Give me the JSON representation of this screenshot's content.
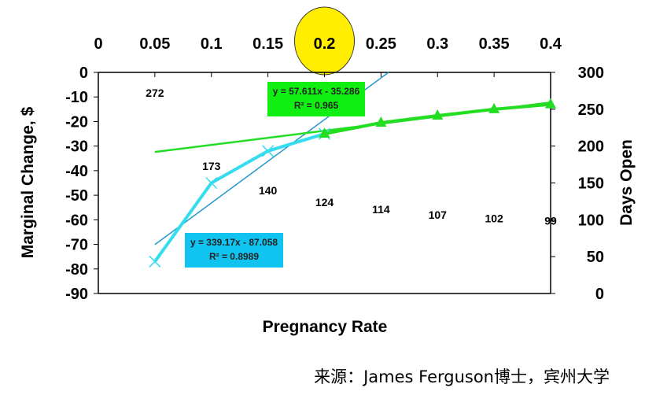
{
  "chart_data": {
    "type": "line",
    "xlabel": "Pregnancy Rate",
    "ylabel": "Marginal Change, $",
    "y2label": "Days Open",
    "xlim": [
      0,
      0.4
    ],
    "ylim": [
      -90,
      0
    ],
    "y2lim": [
      0,
      300
    ],
    "x_ticks": [
      "0",
      "0.05",
      "0.1",
      "0.15",
      "0.2",
      "0.25",
      "0.3",
      "0.35",
      "0.4"
    ],
    "y_ticks": [
      "0",
      "-10",
      "-20",
      "-30",
      "-40",
      "-50",
      "-60",
      "-70",
      "-80",
      "-90"
    ],
    "y2_ticks": [
      "300",
      "250",
      "200",
      "150",
      "100",
      "50",
      "0"
    ],
    "highlight_x": "0.2",
    "highlight_color": "#ffee00",
    "grid": false,
    "series": [
      {
        "color": "#33ddee",
        "marker": "x",
        "x": [
          0.05,
          0.1,
          0.15,
          0.2
        ],
        "y": [
          -77,
          -45,
          -32,
          -25
        ],
        "trendline": {
          "slope": 339.17,
          "intercept": -87.058,
          "equation": "y = 339.17x - 87.058",
          "r2": "R² = 0.8989",
          "box_color": "#11c4f0"
        }
      },
      {
        "color": "#22dd22",
        "marker": "triangle",
        "x": [
          0.2,
          0.25,
          0.3,
          0.35,
          0.4
        ],
        "y": [
          -25,
          -20.5,
          -17.6,
          -15,
          -13
        ],
        "trendline": {
          "slope": 57.611,
          "intercept": -35.286,
          "equation": "y = 57.611x - 35.286",
          "r2": "R² = 0.965",
          "box_color": "#11ee11"
        }
      },
      {
        "axis": "right",
        "marker": "none",
        "x": [
          0.05,
          0.1,
          0.15,
          0.2,
          0.25,
          0.3,
          0.35,
          0.4
        ],
        "values": [
          272,
          173,
          140,
          124,
          114,
          107,
          102,
          99
        ]
      }
    ]
  },
  "source": "来源：James Ferguson博士，宾州大学"
}
